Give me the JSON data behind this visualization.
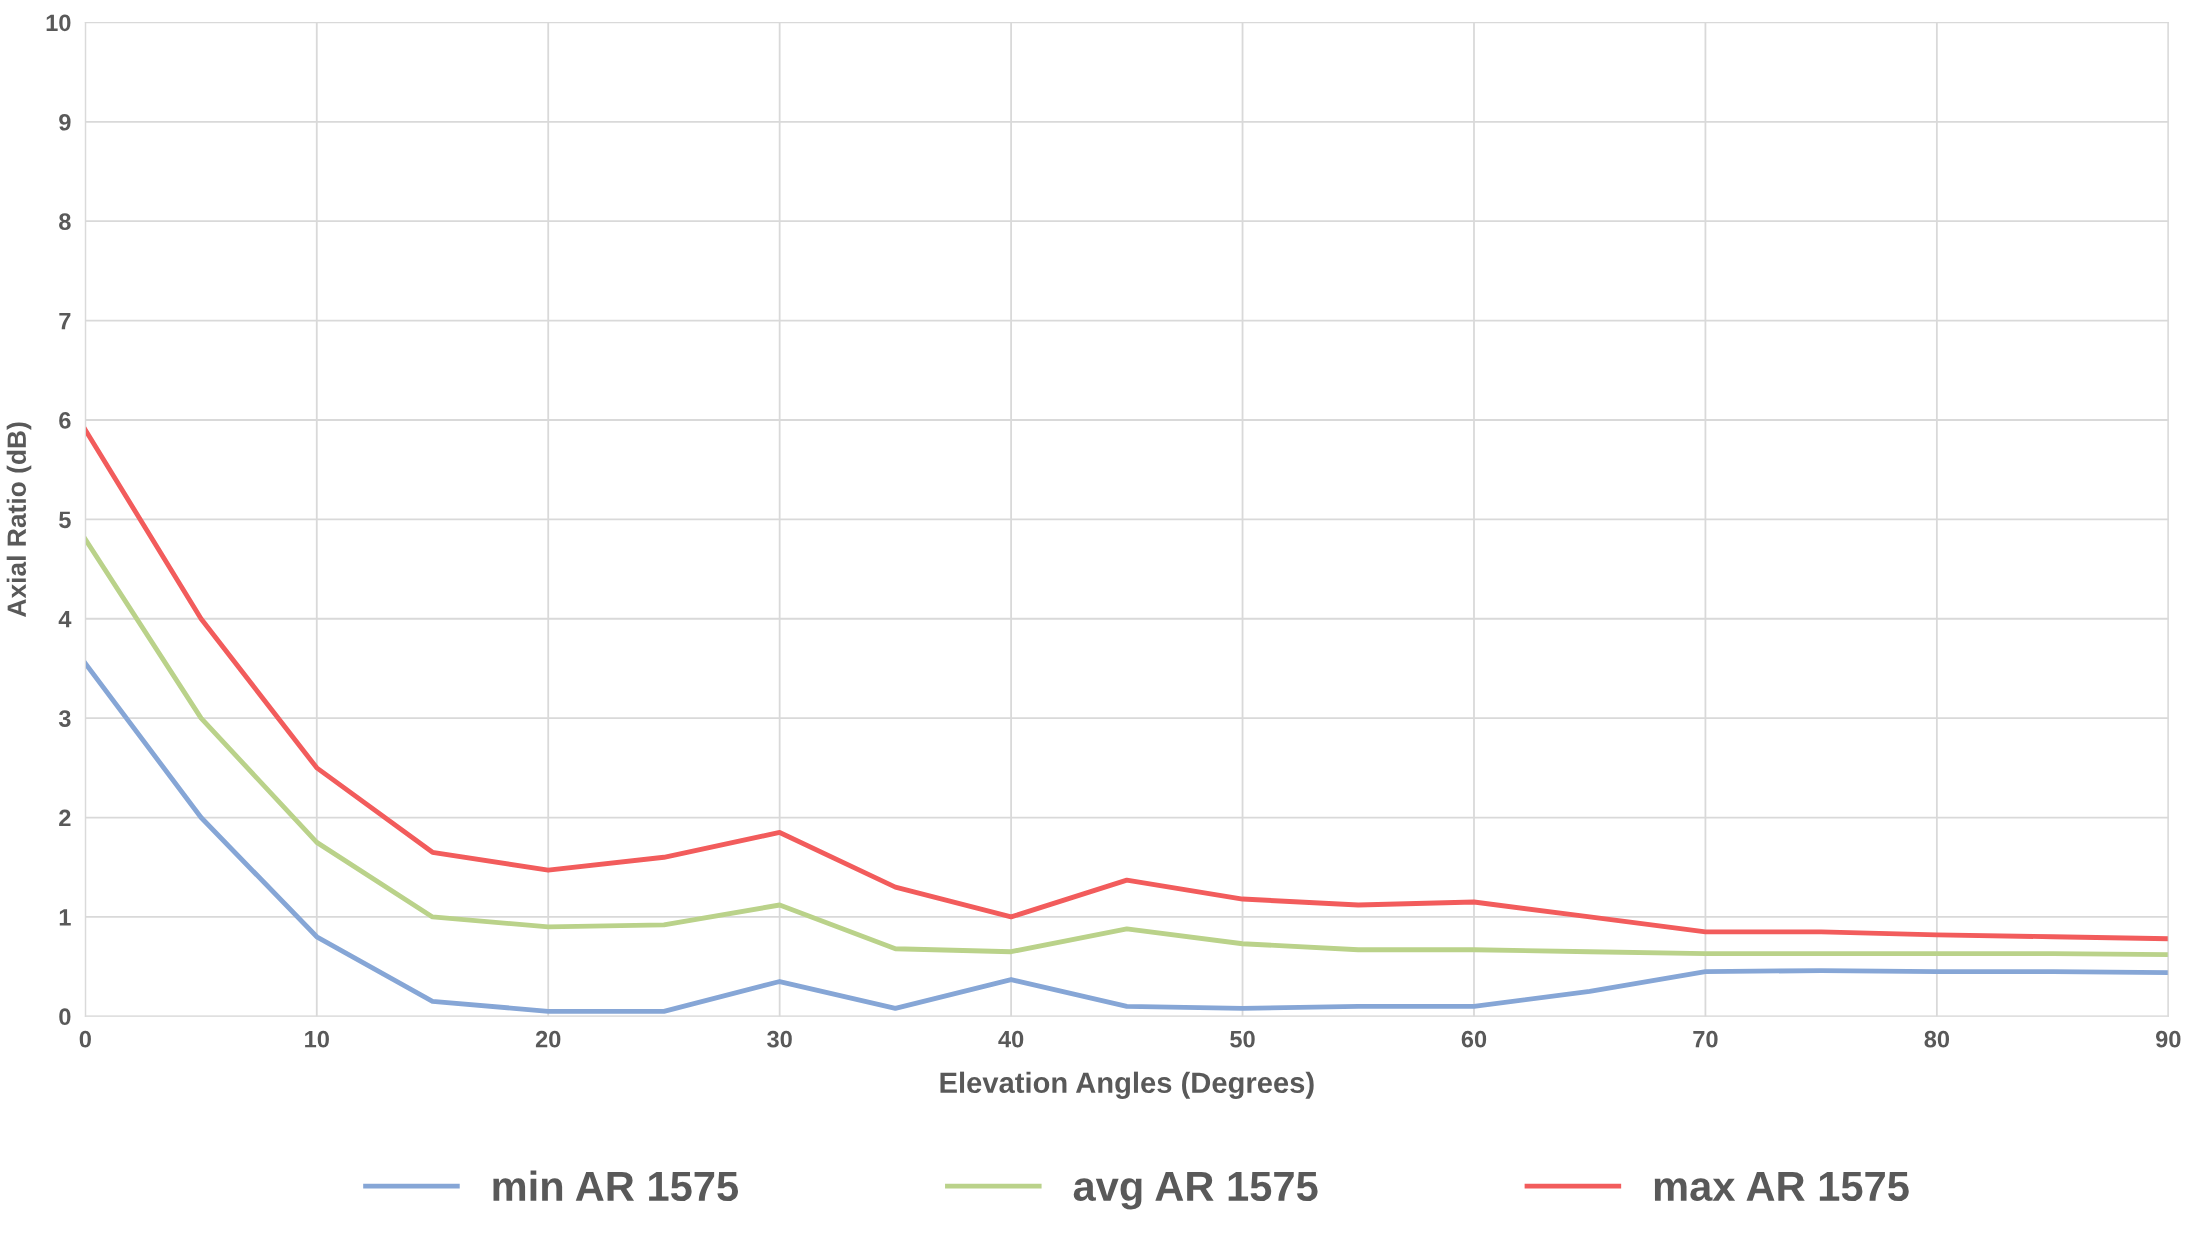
{
  "chart_data": {
    "type": "line",
    "xlabel": "Elevation Angles (Degrees)",
    "ylabel": "Axial Ratio (dB)",
    "x": [
      0,
      5,
      10,
      15,
      20,
      25,
      30,
      35,
      40,
      45,
      50,
      55,
      60,
      65,
      70,
      75,
      80,
      85,
      90
    ],
    "series": [
      {
        "name": "min AR 1575",
        "color": "#86a6d6",
        "values": [
          3.55,
          2.0,
          0.8,
          0.15,
          0.05,
          0.05,
          0.35,
          0.08,
          0.37,
          0.1,
          0.08,
          0.1,
          0.1,
          0.25,
          0.45,
          0.46,
          0.45,
          0.45,
          0.44
        ]
      },
      {
        "name": "avg AR 1575",
        "color": "#bad28a",
        "values": [
          4.8,
          3.0,
          1.75,
          1.0,
          0.9,
          0.92,
          1.12,
          0.68,
          0.65,
          0.88,
          0.73,
          0.67,
          0.67,
          0.65,
          0.63,
          0.63,
          0.63,
          0.63,
          0.62
        ]
      },
      {
        "name": "max AR 1575",
        "color": "#f25c5c",
        "values": [
          5.9,
          4.0,
          2.5,
          1.65,
          1.47,
          1.6,
          1.85,
          1.3,
          1.0,
          1.37,
          1.18,
          1.12,
          1.15,
          1.0,
          0.85,
          0.85,
          0.82,
          0.8,
          0.78
        ]
      }
    ],
    "xlim": [
      0,
      90
    ],
    "xticks": [
      0,
      10,
      20,
      30,
      40,
      50,
      60,
      70,
      80,
      90
    ],
    "ylim": [
      0,
      10
    ],
    "yticks": [
      0,
      1,
      2,
      3,
      4,
      5,
      6,
      7,
      8,
      9,
      10
    ],
    "grid": true,
    "legend": "bottom",
    "marker": "none",
    "line_style": "solid"
  }
}
